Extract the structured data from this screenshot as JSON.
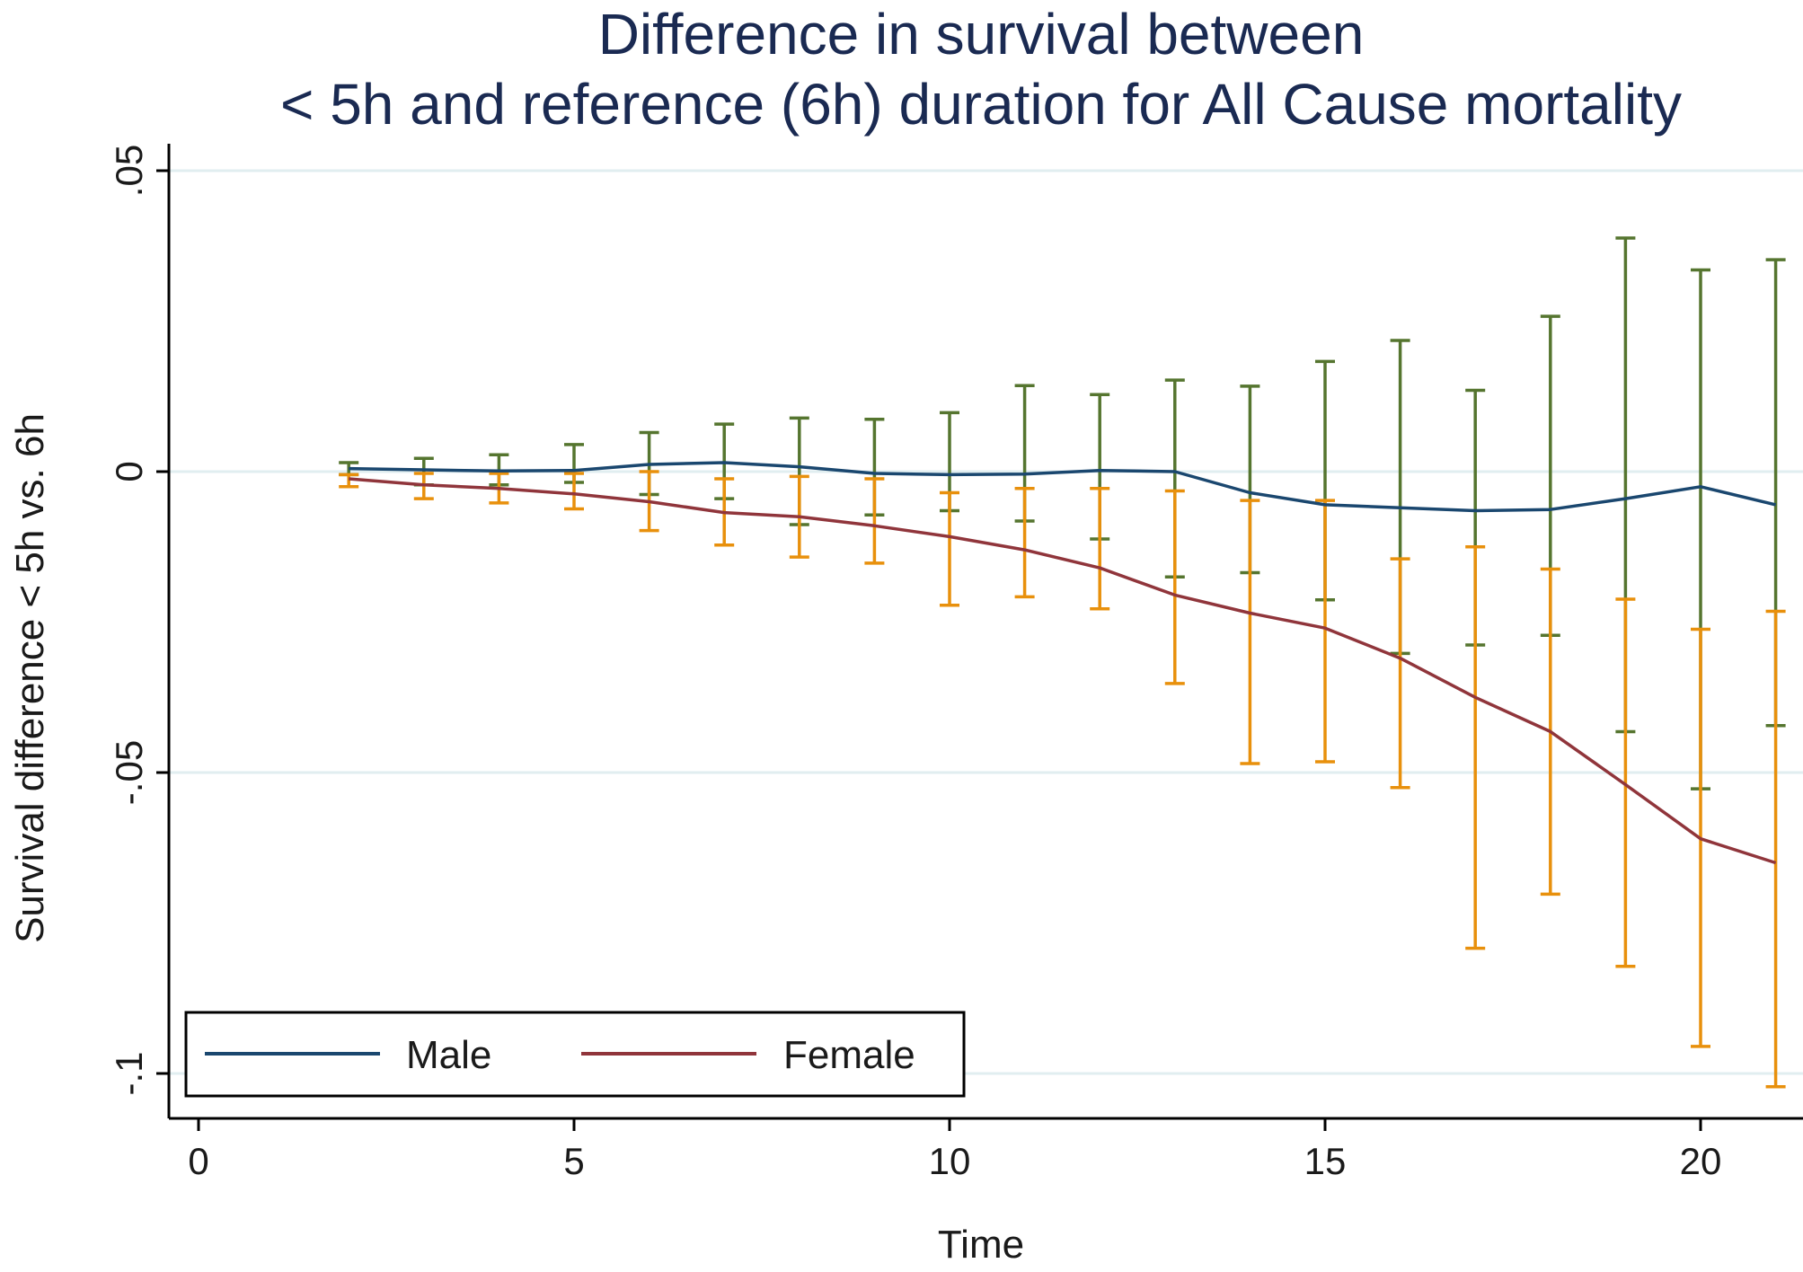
{
  "chart_data": {
    "type": "line",
    "title": "Difference in survival between",
    "subtitle": "< 5h and reference (6h) duration for All Cause mortality",
    "xlabel": "Time",
    "ylabel": "Survival difference < 5h vs. 6h",
    "xlim": [
      0,
      21
    ],
    "ylim": [
      -0.1,
      0.05
    ],
    "xticks": [
      0,
      5,
      10,
      15,
      20
    ],
    "xtick_labels": [
      "0",
      "5",
      "10",
      "15",
      "20"
    ],
    "yticks": [
      0.05,
      0,
      -0.05,
      -0.1
    ],
    "ytick_labels": [
      ".05",
      "0",
      "-.05",
      "-.1"
    ],
    "grid": "horizontal",
    "legend_position": "bottom-left",
    "series": [
      {
        "name": "Male",
        "color": "#1a476f",
        "ci_color": "#55752f",
        "x": [
          2,
          3,
          4,
          5,
          6,
          7,
          8,
          9,
          10,
          11,
          12,
          13,
          14,
          15,
          16,
          17,
          18,
          19,
          20,
          21
        ],
        "values": [
          0.0005,
          0.0003,
          0.0001,
          0.0002,
          0.0012,
          0.0015,
          0.0008,
          -0.0003,
          -0.0005,
          -0.0004,
          0.0002,
          0.0,
          -0.0035,
          -0.0055,
          -0.006,
          -0.0065,
          -0.0063,
          -0.0045,
          -0.0025,
          -0.0055
        ],
        "lower": [
          -0.0005,
          -0.0022,
          -0.0022,
          -0.0018,
          -0.0038,
          -0.0045,
          -0.0088,
          -0.0072,
          -0.0065,
          -0.0082,
          -0.0112,
          -0.0175,
          -0.0168,
          -0.0213,
          -0.0302,
          -0.0288,
          -0.0272,
          -0.0432,
          -0.0527,
          -0.0422
        ],
        "upper": [
          0.0015,
          0.0022,
          0.0028,
          0.0045,
          0.0065,
          0.0079,
          0.0089,
          0.0087,
          0.0098,
          0.0143,
          0.0128,
          0.0152,
          0.0142,
          0.0183,
          0.0218,
          0.0135,
          0.0258,
          0.0388,
          0.0335,
          0.0352
        ]
      },
      {
        "name": "Female",
        "color": "#90353b",
        "ci_color": "#e8900c",
        "x": [
          2,
          3,
          4,
          5,
          6,
          7,
          8,
          9,
          10,
          11,
          12,
          13,
          14,
          15,
          16,
          17,
          18,
          19,
          20,
          21
        ],
        "values": [
          -0.0012,
          -0.0022,
          -0.0028,
          -0.0037,
          -0.005,
          -0.0068,
          -0.0075,
          -0.009,
          -0.0108,
          -0.013,
          -0.016,
          -0.0205,
          -0.0235,
          -0.026,
          -0.031,
          -0.0375,
          -0.0432,
          -0.052,
          -0.061,
          -0.065
        ],
        "lower": [
          -0.0025,
          -0.0045,
          -0.0052,
          -0.0062,
          -0.0098,
          -0.0122,
          -0.0142,
          -0.0152,
          -0.0222,
          -0.0208,
          -0.0228,
          -0.0352,
          -0.0485,
          -0.0482,
          -0.0525,
          -0.0792,
          -0.0702,
          -0.0822,
          -0.0955,
          -0.1022
        ],
        "upper": [
          -0.0005,
          -0.0003,
          -0.0003,
          -0.0003,
          0.0,
          -0.0012,
          -0.0008,
          -0.0012,
          -0.0035,
          -0.0028,
          -0.0028,
          -0.0032,
          -0.0048,
          -0.0048,
          -0.0145,
          -0.0125,
          -0.0162,
          -0.0212,
          -0.0262,
          -0.0232
        ]
      }
    ]
  }
}
